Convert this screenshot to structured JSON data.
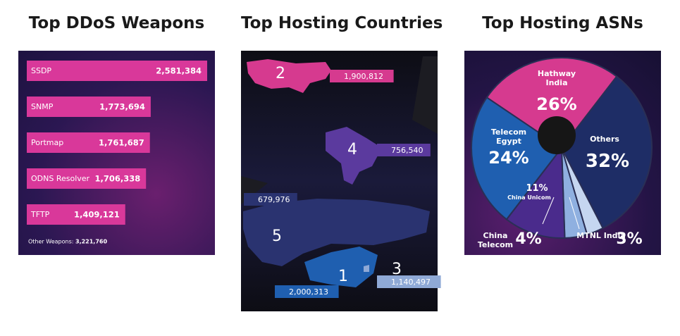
{
  "chart_data": [
    {
      "type": "bar",
      "title": "Top DDoS Weapons",
      "categories": [
        "SSDP",
        "SNMP",
        "Portmap",
        "ODNS Resolver",
        "TFTP"
      ],
      "values": [
        2581384,
        1773694,
        1761687,
        1706338,
        1409121
      ],
      "value_labels": [
        "2,581,384",
        "1,773,694",
        "1,761,687",
        "1,706,338",
        "1,409,121"
      ],
      "color": "#d9389a",
      "note": {
        "label": "Other Weapons:",
        "value": 3221760,
        "value_label": "3,221,760"
      }
    },
    {
      "type": "map",
      "title": "Top Hosting Countries",
      "ranks": [
        2,
        4,
        5,
        1,
        3
      ],
      "values": [
        1900812,
        756540,
        679976,
        2000313,
        1140497
      ],
      "value_labels": [
        "1,900,812",
        "756,540",
        "679,976",
        "2,000,313",
        "1,140,497"
      ],
      "colors": [
        "#d63a8f",
        "#5b3a9e",
        "#2a3370",
        "#1f5fb0",
        "#8fa9d6"
      ]
    },
    {
      "type": "pie",
      "title": "Top Hosting ASNs",
      "categories": [
        "Hathway India",
        "Others",
        "MTNL India",
        "China Telecom",
        "China Unicom",
        "Telecom Egypt"
      ],
      "values": [
        26,
        32,
        3,
        4,
        11,
        24
      ],
      "value_labels": [
        "26%",
        "32%",
        "3%",
        "4%",
        "11%",
        "24%"
      ],
      "colors": [
        "#d63a8f",
        "#1e2d66",
        "#c5d6f0",
        "#8fb0e0",
        "#4a2b8c",
        "#1f5fb0"
      ]
    }
  ]
}
